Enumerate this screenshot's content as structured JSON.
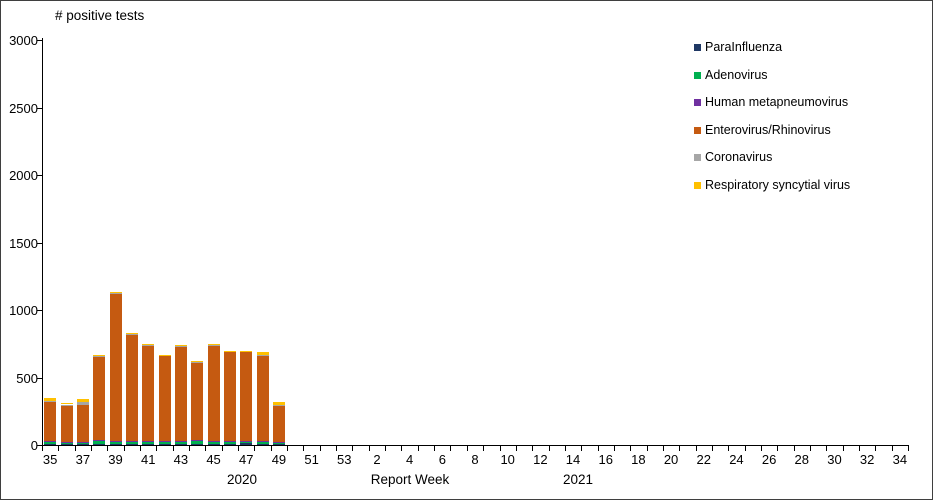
{
  "chart_data": {
    "type": "bar",
    "stacked": true,
    "title": "# positive tests",
    "xlabel": "Report Week",
    "ylabel": "# positive tests",
    "year_labels": {
      "left": "2020",
      "right": "2021"
    },
    "ylim": [
      0,
      3000
    ],
    "ytick_step": 500,
    "grid": false,
    "legend_position": "right",
    "categories": [
      "35",
      "36",
      "37",
      "38",
      "39",
      "40",
      "41",
      "42",
      "43",
      "44",
      "45",
      "46",
      "47",
      "48",
      "49",
      "50",
      "51",
      "52",
      "53",
      "1",
      "2",
      "3",
      "4",
      "5",
      "6",
      "7",
      "8",
      "9",
      "10",
      "11",
      "12",
      "13",
      "14",
      "15",
      "16",
      "17",
      "18",
      "19",
      "20",
      "21",
      "22",
      "23",
      "24",
      "25",
      "26",
      "27",
      "28",
      "29",
      "30",
      "31",
      "32",
      "33",
      "34"
    ],
    "x_tick_labels": [
      "35",
      "",
      "37",
      "",
      "39",
      "",
      "41",
      "",
      "43",
      "",
      "45",
      "",
      "47",
      "",
      "49",
      "",
      "51",
      "",
      "53",
      "",
      "2",
      "",
      "4",
      "",
      "6",
      "",
      "8",
      "",
      "10",
      "",
      "12",
      "",
      "14",
      "",
      "16",
      "",
      "18",
      "",
      "20",
      "",
      "22",
      "",
      "24",
      "",
      "26",
      "",
      "28",
      "",
      "30",
      "",
      "32",
      "",
      "34"
    ],
    "series": [
      {
        "name": "ParaInfluenza",
        "color": "#1F3864",
        "values": [
          8,
          10,
          8,
          5,
          8,
          8,
          10,
          10,
          8,
          8,
          10,
          10,
          12,
          8,
          5,
          0,
          0,
          0,
          0,
          0,
          0,
          0,
          0,
          0,
          0,
          0,
          0,
          0,
          0,
          0,
          0,
          0,
          0,
          0,
          0,
          0,
          0,
          0,
          0,
          0,
          0,
          0,
          0,
          0,
          0,
          0,
          0,
          0,
          0,
          0,
          0,
          0,
          0
        ]
      },
      {
        "name": "Adenovirus",
        "color": "#00B050",
        "values": [
          15,
          12,
          12,
          25,
          15,
          20,
          18,
          15,
          20,
          18,
          15,
          18,
          15,
          20,
          15,
          0,
          0,
          0,
          0,
          0,
          0,
          0,
          0,
          0,
          0,
          0,
          0,
          0,
          0,
          0,
          0,
          0,
          0,
          0,
          0,
          0,
          0,
          0,
          0,
          0,
          0,
          0,
          0,
          0,
          0,
          0,
          0,
          0,
          0,
          0,
          0,
          0,
          0
        ]
      },
      {
        "name": "Human metapneumovirus",
        "color": "#7030A0",
        "values": [
          3,
          3,
          5,
          5,
          5,
          5,
          5,
          5,
          5,
          8,
          5,
          5,
          5,
          5,
          5,
          0,
          0,
          0,
          0,
          0,
          0,
          0,
          0,
          0,
          0,
          0,
          0,
          0,
          0,
          0,
          0,
          0,
          0,
          0,
          0,
          0,
          0,
          0,
          0,
          0,
          0,
          0,
          0,
          0,
          0,
          0,
          0,
          0,
          0,
          0,
          0,
          0,
          0
        ]
      },
      {
        "name": "Enterovirus/Rhinovirus",
        "color": "#C55A11",
        "values": [
          290,
          270,
          270,
          620,
          1090,
          785,
          700,
          628,
          695,
          579,
          708,
          655,
          656,
          630,
          265,
          0,
          0,
          0,
          0,
          0,
          0,
          0,
          0,
          0,
          0,
          0,
          0,
          0,
          0,
          0,
          0,
          0,
          0,
          0,
          0,
          0,
          0,
          0,
          0,
          0,
          0,
          0,
          0,
          0,
          0,
          0,
          0,
          0,
          0,
          0,
          0,
          0,
          0
        ]
      },
      {
        "name": "Coronavirus",
        "color": "#A6A6A6",
        "values": [
          8,
          5,
          20,
          5,
          5,
          5,
          5,
          5,
          5,
          5,
          5,
          5,
          5,
          7,
          5,
          0,
          0,
          0,
          0,
          0,
          0,
          0,
          0,
          0,
          0,
          0,
          0,
          0,
          0,
          0,
          0,
          0,
          0,
          0,
          0,
          0,
          0,
          0,
          0,
          0,
          0,
          0,
          0,
          0,
          0,
          0,
          0,
          0,
          0,
          0,
          0,
          0,
          0
        ]
      },
      {
        "name": "Respiratory syncytial virus",
        "color": "#FFC000",
        "values": [
          26,
          10,
          25,
          10,
          7,
          7,
          7,
          7,
          7,
          7,
          7,
          7,
          7,
          20,
          20,
          0,
          0,
          0,
          0,
          0,
          0,
          0,
          0,
          0,
          0,
          0,
          0,
          0,
          0,
          0,
          0,
          0,
          0,
          0,
          0,
          0,
          0,
          0,
          0,
          0,
          0,
          0,
          0,
          0,
          0,
          0,
          0,
          0,
          0,
          0,
          0,
          0,
          0
        ]
      }
    ]
  }
}
